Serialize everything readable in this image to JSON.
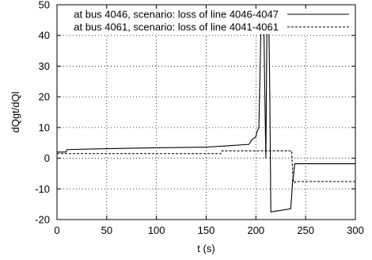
{
  "chart_data": {
    "type": "line",
    "xlabel": "t (s)",
    "ylabel": "dQgt/dQl",
    "xlim": [
      0,
      300
    ],
    "ylim": [
      -20,
      50
    ],
    "xticks": [
      "0",
      "50",
      "100",
      "150",
      "200",
      "250",
      "300"
    ],
    "yticks": [
      "-20",
      "-10",
      "0",
      "10",
      "20",
      "30",
      "40",
      "50"
    ],
    "grid": true,
    "legend_position": "top-right",
    "series": [
      {
        "name": "at bus 4046, scenario: loss of line 4046-4047",
        "style": "solid",
        "x": [
          0,
          9,
          10,
          50,
          100,
          150,
          170,
          193,
          196,
          200,
          201,
          203,
          205,
          207,
          208,
          209,
          210,
          211,
          212,
          213,
          214,
          215,
          235,
          236,
          237,
          238,
          239,
          300
        ],
        "y": [
          2,
          2,
          2.8,
          3.1,
          3.4,
          3.6,
          4,
          4.5,
          6,
          7,
          8.5,
          10,
          42,
          42,
          43,
          20,
          0,
          40,
          44,
          44,
          20,
          -17.5,
          -16.5,
          -12,
          -7,
          -5,
          -1.8,
          -1.8
        ]
      },
      {
        "name": "at bus 4061, scenario: loss of line 4041-4061",
        "style": "dashed",
        "x": [
          0,
          50,
          100,
          150,
          165,
          166,
          236,
          237,
          238,
          239,
          240,
          300
        ],
        "y": [
          1.5,
          1.5,
          1.5,
          1.5,
          1.5,
          2.4,
          2.4,
          -5,
          -8,
          -8,
          -7.6,
          -7.6
        ]
      }
    ]
  }
}
